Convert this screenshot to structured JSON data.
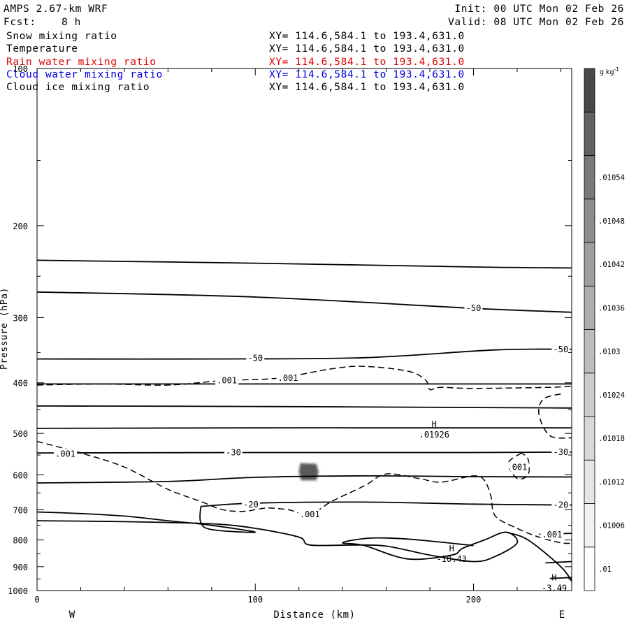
{
  "header": {
    "model": "AMPS 2.67-km WRF",
    "init": "Init: 00 UTC Mon 02 Feb 26",
    "fcst_label": "Fcst:",
    "fcst_value": "8 h",
    "valid": "Valid: 08 UTC Mon 02 Feb 26"
  },
  "fields": [
    {
      "name": "Snow mixing ratio",
      "xy": "XY= 114.6,584.1 to 193.4,631.0",
      "color": "#000000"
    },
    {
      "name": "Temperature",
      "xy": "XY= 114.6,584.1 to 193.4,631.0",
      "color": "#000000"
    },
    {
      "name": "Rain water mixing ratio",
      "xy": "XY= 114.6,584.1 to 193.4,631.0",
      "color": "#e00000"
    },
    {
      "name": "Cloud water mixing ratio",
      "xy": "XY= 114.6,584.1 to 193.4,631.0",
      "color": "#0000e0"
    },
    {
      "name": "Cloud ice mixing ratio",
      "xy": "XY= 114.6,584.1 to 193.4,631.0",
      "color": "#000000"
    }
  ],
  "chart_data": {
    "type": "contour",
    "xlabel": "Distance (km)",
    "ylabel": "Pressure (hPa)",
    "xlim": [
      0,
      245
    ],
    "ylim": [
      1000,
      100
    ],
    "y_scale": "log",
    "x_ticks": [
      {
        "v": 0,
        "l": "0"
      },
      {
        "v": 100,
        "l": "100"
      },
      {
        "v": 200,
        "l": "200"
      }
    ],
    "y_ticks": [
      {
        "v": 100,
        "l": "100"
      },
      {
        "v": 200,
        "l": "200"
      },
      {
        "v": 300,
        "l": "300"
      },
      {
        "v": 400,
        "l": "400"
      },
      {
        "v": 500,
        "l": "500"
      },
      {
        "v": 600,
        "l": "600"
      },
      {
        "v": 700,
        "l": "700"
      },
      {
        "v": 800,
        "l": "800"
      },
      {
        "v": 900,
        "l": "900"
      },
      {
        "v": 1000,
        "l": "1000"
      }
    ],
    "x_end_labels": {
      "left": "W",
      "right": "E"
    },
    "colorbar": {
      "unit": "g kg-1",
      "labels": [
        ".01",
        ".01006",
        ".01012",
        ".01018",
        ".01024",
        ".0103",
        ".01036",
        ".01042",
        ".01048",
        ".01054"
      ],
      "colors": [
        "#ffffff",
        "#f2f2f2",
        "#e5e5e5",
        "#d8d8d8",
        "#cbcbcb",
        "#bdbdbd",
        "#aeaeae",
        "#9e9e9e",
        "#8c8c8c",
        "#787878",
        "#616161",
        "#484848"
      ]
    },
    "temperature_isotherms": [
      {
        "points": [
          [
            0,
            233
          ],
          [
            100,
            236
          ],
          [
            200,
            240
          ],
          [
            245,
            241
          ]
        ]
      },
      {
        "points": [
          [
            0,
            268
          ],
          [
            100,
            274
          ],
          [
            200,
            288
          ],
          [
            245,
            293
          ]
        ]
      },
      {
        "points": [
          [
            0,
            360
          ],
          [
            80,
            360
          ],
          [
            150,
            358
          ],
          [
            210,
            346
          ],
          [
            245,
            345
          ]
        ]
      },
      {
        "points": [
          [
            0,
            402
          ],
          [
            100,
            402
          ],
          [
            200,
            402
          ],
          [
            245,
            402
          ]
        ]
      },
      {
        "points": [
          [
            0,
            443
          ],
          [
            100,
            444
          ],
          [
            200,
            446
          ],
          [
            245,
            447
          ]
        ]
      },
      {
        "points": [
          [
            0,
            489
          ],
          [
            100,
            488
          ],
          [
            200,
            488
          ],
          [
            245,
            488
          ]
        ]
      },
      {
        "points": [
          [
            0,
            545
          ],
          [
            100,
            544
          ],
          [
            200,
            544
          ],
          [
            245,
            543
          ]
        ]
      },
      {
        "points": [
          [
            0,
            622
          ],
          [
            60,
            618
          ],
          [
            100,
            607
          ],
          [
            150,
            603
          ],
          [
            200,
            605
          ],
          [
            245,
            606
          ]
        ]
      },
      {
        "points": [
          [
            75,
            690
          ],
          [
            100,
            680
          ],
          [
            150,
            677
          ],
          [
            200,
            683
          ],
          [
            245,
            686
          ]
        ]
      },
      {
        "points": [
          [
            0,
            707
          ],
          [
            20,
            712
          ],
          [
            40,
            720
          ],
          [
            60,
            735
          ],
          [
            80,
            750
          ],
          [
            100,
            773
          ],
          [
            80,
            764
          ],
          [
            75,
            740
          ],
          [
            75,
            690
          ]
        ]
      },
      {
        "points": [
          [
            0,
            735
          ],
          [
            40,
            738
          ],
          [
            80,
            745
          ],
          [
            100,
            760
          ],
          [
            120,
            790
          ],
          [
            125,
            818
          ],
          [
            145,
            818
          ],
          [
            160,
            822
          ],
          [
            180,
            855
          ],
          [
            200,
            880
          ],
          [
            210,
            860
          ],
          [
            220,
            810
          ],
          [
            215,
            773
          ],
          [
            205,
            800
          ],
          [
            195,
            830
          ],
          [
            190,
            855
          ],
          [
            170,
            870
          ],
          [
            150,
            820
          ],
          [
            140,
            810
          ],
          [
            150,
            795
          ],
          [
            160,
            793
          ],
          [
            175,
            800
          ],
          [
            200,
            820
          ]
        ]
      },
      {
        "points": [
          [
            215,
            773
          ],
          [
            225,
            800
          ],
          [
            240,
            900
          ],
          [
            245,
            960
          ]
        ]
      },
      {
        "points": [
          [
            230,
            780
          ],
          [
            245,
            777
          ]
        ]
      },
      {
        "points": [
          [
            233,
            885
          ],
          [
            245,
            880
          ]
        ]
      },
      {
        "points": [
          [
            235,
            948
          ],
          [
            245,
            944
          ]
        ]
      }
    ],
    "temperature_labels": [
      {
        "x": 100,
        "p": 359,
        "t": "-50"
      },
      {
        "x": 200,
        "p": 288,
        "t": "-50"
      },
      {
        "x": 240,
        "p": 345,
        "t": "-50"
      },
      {
        "x": 90,
        "p": 544,
        "t": "-30"
      },
      {
        "x": 240,
        "p": 543,
        "t": "-30"
      },
      {
        "x": 98,
        "p": 684,
        "t": "-20"
      },
      {
        "x": 240,
        "p": 686,
        "t": "-20"
      }
    ],
    "highs": [
      {
        "x": 182,
        "p": 489,
        "symbol": "H",
        "value": ".01926"
      },
      {
        "x": 190,
        "p": 847,
        "symbol": "H",
        "value": "-10.43"
      },
      {
        "x": 237,
        "p": 962,
        "symbol": "H",
        "value": "-3.49"
      }
    ],
    "snow_contours": [
      {
        "value": ".001",
        "points": [
          [
            0,
            404
          ],
          [
            30,
            402
          ],
          [
            60,
            404
          ],
          [
            85,
            396
          ],
          [
            110,
            392
          ],
          [
            135,
            376
          ],
          [
            150,
            372
          ],
          [
            170,
            380
          ],
          [
            178,
            395
          ],
          [
            180,
            412
          ],
          [
            185,
            408
          ],
          [
            200,
            410
          ],
          [
            235,
            408
          ],
          [
            245,
            406
          ]
        ]
      },
      {
        "value": ".001",
        "points": [
          [
            0,
            518
          ],
          [
            20,
            545
          ],
          [
            40,
            580
          ],
          [
            60,
            640
          ],
          [
            75,
            675
          ],
          [
            85,
            700
          ],
          [
            95,
            705
          ],
          [
            105,
            695
          ],
          [
            115,
            700
          ],
          [
            125,
            715
          ],
          [
            135,
            675
          ],
          [
            150,
            630
          ],
          [
            160,
            598
          ],
          [
            175,
            610
          ],
          [
            185,
            620
          ],
          [
            200,
            603
          ],
          [
            205,
            615
          ],
          [
            208,
            660
          ],
          [
            210,
            720
          ],
          [
            220,
            760
          ],
          [
            230,
            790
          ],
          [
            240,
            810
          ],
          [
            245,
            812
          ]
        ]
      },
      {
        "value": ".001",
        "points": [
          [
            240,
            420
          ],
          [
            232,
            430
          ],
          [
            230,
            460
          ],
          [
            235,
            505
          ],
          [
            245,
            510
          ]
        ]
      },
      {
        "value": ".001",
        "points": [
          [
            222,
            545
          ],
          [
            216,
            570
          ],
          [
            220,
            610
          ],
          [
            225,
            600
          ],
          [
            225,
            560
          ],
          [
            222,
            545
          ]
        ]
      }
    ],
    "snow_labels": [
      {
        "x": 87,
        "p": 396,
        "t": ".001"
      },
      {
        "x": 115,
        "p": 392,
        "t": ".001"
      },
      {
        "x": 13,
        "p": 547,
        "t": ".001"
      },
      {
        "x": 125,
        "p": 715,
        "t": ".001"
      },
      {
        "x": 220,
        "p": 580,
        "t": ".001"
      },
      {
        "x": 236,
        "p": 782,
        "t": ".001"
      }
    ],
    "cloud_ice_patch": {
      "x_range": [
        120,
        129
      ],
      "p_range": [
        570,
        615
      ]
    }
  },
  "bottom": {
    "xlabel": "Distance (km)",
    "west": "W",
    "east": "E"
  }
}
